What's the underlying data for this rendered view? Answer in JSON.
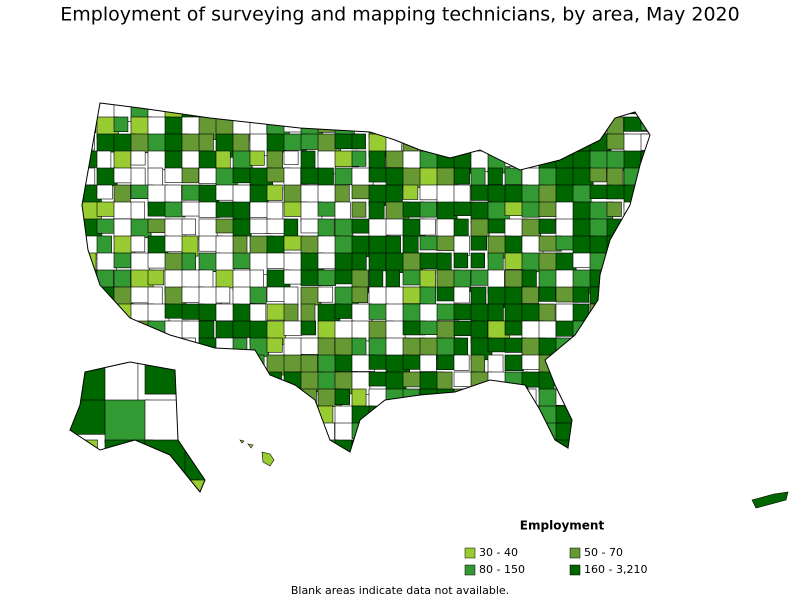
{
  "title": "Employment of surveying and mapping technicians, by area, May 2020",
  "legend": {
    "title": "Employment",
    "items": [
      {
        "label": "30 - 40",
        "color": "#99cc33"
      },
      {
        "label": "50 - 70",
        "color": "#669933"
      },
      {
        "label": "80 - 150",
        "color": "#339933"
      },
      {
        "label": "160 - 3,210",
        "color": "#006600"
      }
    ]
  },
  "note": "Blank areas indicate data not available."
}
